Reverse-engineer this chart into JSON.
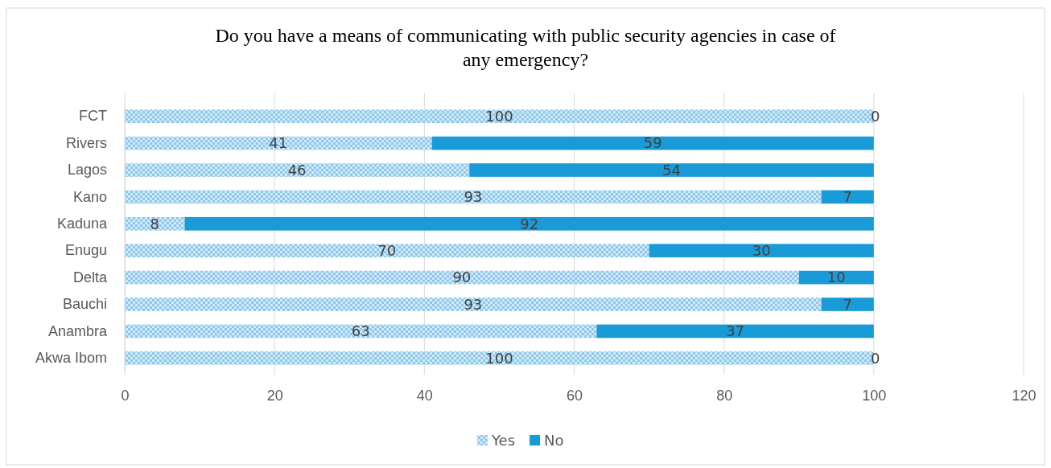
{
  "chart_data": {
    "type": "bar",
    "orientation": "horizontal",
    "stacked": true,
    "title": "Do you have a means of communicating with public security agencies in case of any emergency?",
    "categories": [
      "FCT",
      "Rivers",
      "Lagos",
      "Kano",
      "Kaduna",
      "Enugu",
      "Delta",
      "Bauchi",
      "Anambra",
      "Akwa Ibom"
    ],
    "series": [
      {
        "name": "Yes",
        "color": "#8ec8ec",
        "values": [
          100,
          41,
          46,
          93,
          8,
          70,
          90,
          93,
          63,
          100
        ]
      },
      {
        "name": "No",
        "color": "#1a9bd7",
        "values": [
          0,
          59,
          54,
          7,
          92,
          30,
          10,
          7,
          37,
          0
        ]
      }
    ],
    "xlim": [
      0,
      120
    ],
    "xticks": [
      0,
      20,
      40,
      60,
      80,
      100,
      120
    ],
    "grid": "x",
    "legend": "bottom",
    "data_labels": true
  }
}
